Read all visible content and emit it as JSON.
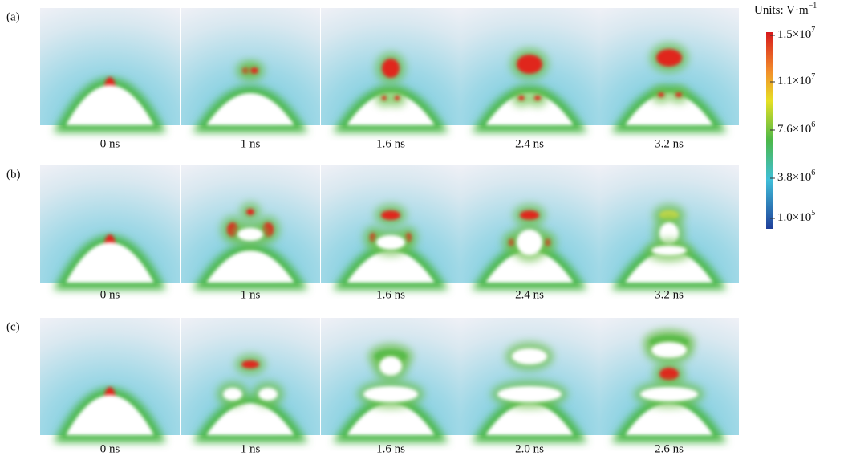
{
  "rows": [
    {
      "label": "(a)",
      "times": [
        "0 ns",
        "1 ns",
        "1.6 ns",
        "2.4 ns",
        "3.2 ns"
      ]
    },
    {
      "label": "(b)",
      "times": [
        "0 ns",
        "1 ns",
        "1.6 ns",
        "2.4 ns",
        "3.2 ns"
      ]
    },
    {
      "label": "(c)",
      "times": [
        "0 ns",
        "1 ns",
        "1.6 ns",
        "2.0 ns",
        "2.6 ns"
      ]
    }
  ],
  "colorbar": {
    "units": {
      "text": "Units: V·m",
      "sup": "−1"
    },
    "ticks": [
      {
        "base": "1.5×10",
        "exp": "7"
      },
      {
        "base": "1.1×10",
        "exp": "7"
      },
      {
        "base": "7.6×10",
        "exp": "6"
      },
      {
        "base": "3.8×10",
        "exp": "6"
      },
      {
        "base": "1.0×10",
        "exp": "5"
      }
    ]
  }
}
